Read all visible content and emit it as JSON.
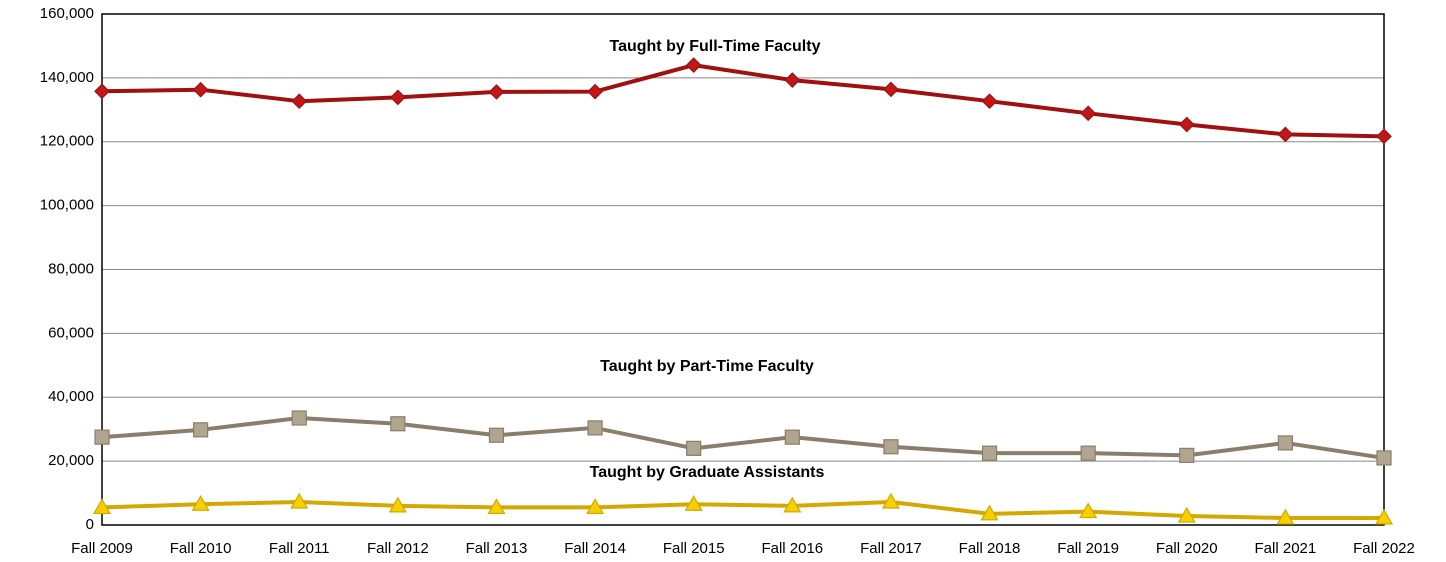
{
  "chart_data": {
    "type": "line",
    "categories": [
      "Fall 2009",
      "Fall 2010",
      "Fall 2011",
      "Fall 2012",
      "Fall 2013",
      "Fall 2014",
      "Fall 2015",
      "Fall 2016",
      "Fall 2017",
      "Fall 2018",
      "Fall 2019",
      "Fall 2020",
      "Fall 2021",
      "Fall 2022"
    ],
    "series": [
      {
        "name": "Taught by Full-Time Faculty",
        "color": "#a01010",
        "marker": "diamond",
        "marker_fill": "#c01818",
        "values": [
          135800,
          136300,
          132700,
          133900,
          135600,
          135700,
          144000,
          139300,
          136400,
          132700,
          128900,
          125400,
          122300,
          121700
        ]
      },
      {
        "name": "Taught by Part-Time Faculty",
        "color": "#8b7d6b",
        "marker": "square",
        "marker_fill": "#b0a58e",
        "values": [
          27500,
          29800,
          33500,
          31700,
          28100,
          30400,
          24000,
          27500,
          24500,
          22500,
          22500,
          21800,
          25700,
          21000
        ]
      },
      {
        "name": "Taught by Graduate Assistants",
        "color": "#d4a800",
        "marker": "triangle",
        "marker_fill": "#f5d000",
        "values": [
          5500,
          6500,
          7200,
          6000,
          5500,
          5500,
          6500,
          6000,
          7200,
          3500,
          4200,
          2800,
          2200,
          2200
        ]
      }
    ],
    "ylim": [
      0,
      160000
    ],
    "yticks": [
      0,
      {
        "value": 20000,
        "label": "20,000"
      },
      {
        "value": 40000,
        "label": "40,000"
      },
      {
        "value": 60000,
        "label": "60,000"
      },
      {
        "value": 80000,
        "label": "80,000"
      },
      {
        "value": 100000,
        "label": "100,000"
      },
      {
        "value": 120000,
        "label": "120,000"
      },
      {
        "value": 140000,
        "label": "140,000"
      },
      {
        "value": 160000,
        "label": "160,000"
      }
    ],
    "grid": true
  }
}
